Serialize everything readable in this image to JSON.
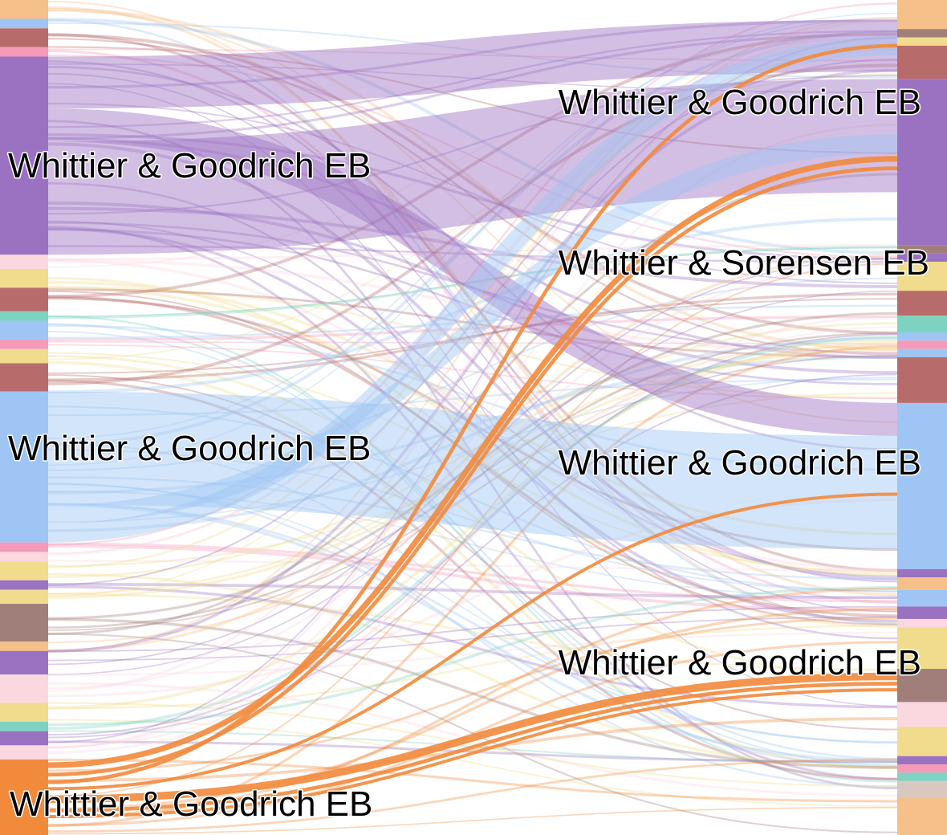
{
  "chart_data": {
    "type": "sankey",
    "title": "",
    "node_labels": {
      "left": [
        {
          "label": "Whittier & Goodrich EB",
          "color": "#9b72c2"
        },
        {
          "label": "Whittier & Goodrich EB",
          "color": "#9ec5f4"
        },
        {
          "label": "Whittier & Goodrich EB",
          "color": "#f28a3c"
        }
      ],
      "right": [
        {
          "label": "Whittier & Goodrich EB",
          "color": "#9b72c2"
        },
        {
          "label": "Whittier & Sorensen EB",
          "color": "#f0dc8c"
        },
        {
          "label": "Whittier & Goodrich EB",
          "color": "#9ec5f4"
        },
        {
          "label": "Whittier & Goodrich EB",
          "color": "#a07e7a"
        }
      ]
    },
    "palette": [
      "#9b72c2",
      "#9ec5f4",
      "#f28a3c",
      "#b86b6b",
      "#f0dc8c",
      "#7dd3c0",
      "#f59ab8",
      "#a07e7a",
      "#f5c08a",
      "#fbd7e0"
    ],
    "left_column": [
      {
        "color": "#f5c08a",
        "value": 2
      },
      {
        "color": "#9ec5f4",
        "value": 1
      },
      {
        "color": "#b86b6b",
        "value": 2
      },
      {
        "color": "#f59ab8",
        "value": 1
      },
      {
        "color": "#9b72c2",
        "value": 21
      },
      {
        "color": "#fbd7e0",
        "value": 1.5
      },
      {
        "color": "#f0dc8c",
        "value": 2
      },
      {
        "color": "#b86b6b",
        "value": 2.5
      },
      {
        "color": "#7dd3c0",
        "value": 1
      },
      {
        "color": "#9ec5f4",
        "value": 2
      },
      {
        "color": "#f59ab8",
        "value": 1
      },
      {
        "color": "#f0dc8c",
        "value": 1.5
      },
      {
        "color": "#b86b6b",
        "value": 3
      },
      {
        "color": "#9ec5f4",
        "value": 16
      },
      {
        "color": "#f59ab8",
        "value": 1
      },
      {
        "color": "#fbd7e0",
        "value": 1
      },
      {
        "color": "#f0dc8c",
        "value": 2
      },
      {
        "color": "#9b72c2",
        "value": 1
      },
      {
        "color": "#f0dc8c",
        "value": 1.5
      },
      {
        "color": "#a07e7a",
        "value": 4
      },
      {
        "color": "#f5c08a",
        "value": 1
      },
      {
        "color": "#9b72c2",
        "value": 2.5
      },
      {
        "color": "#fbd7e0",
        "value": 3
      },
      {
        "color": "#f0dc8c",
        "value": 2
      },
      {
        "color": "#7dd3c0",
        "value": 1
      },
      {
        "color": "#9b72c2",
        "value": 1.5
      },
      {
        "color": "#fbd7e0",
        "value": 1.5
      },
      {
        "color": "#f28a3c",
        "value": 8
      }
    ],
    "right_column": [
      {
        "color": "#f5c08a",
        "value": 3.5
      },
      {
        "color": "#a07e7a",
        "value": 1
      },
      {
        "color": "#f0dc8c",
        "value": 1
      },
      {
        "color": "#b86b6b",
        "value": 4
      },
      {
        "color": "#9b72c2",
        "value": 20
      },
      {
        "color": "#a07e7a",
        "value": 1
      },
      {
        "color": "#9b72c2",
        "value": 1
      },
      {
        "color": "#f0dc8c",
        "value": 3.5
      },
      {
        "color": "#b86b6b",
        "value": 3
      },
      {
        "color": "#7dd3c0",
        "value": 2
      },
      {
        "color": "#9ec5f4",
        "value": 1
      },
      {
        "color": "#f59ab8",
        "value": 1
      },
      {
        "color": "#9ec5f4",
        "value": 1
      },
      {
        "color": "#b86b6b",
        "value": 5.5
      },
      {
        "color": "#9ec5f4",
        "value": 20
      },
      {
        "color": "#9b72c2",
        "value": 1
      },
      {
        "color": "#f5c08a",
        "value": 1.5
      },
      {
        "color": "#9ec5f4",
        "value": 2
      },
      {
        "color": "#9b72c2",
        "value": 1.5
      },
      {
        "color": "#fbd7e0",
        "value": 1
      },
      {
        "color": "#f0dc8c",
        "value": 5
      },
      {
        "color": "#a07e7a",
        "value": 4
      },
      {
        "color": "#fbd7e0",
        "value": 3
      },
      {
        "color": "#f0dc8c",
        "value": 3.5
      },
      {
        "color": "#9b72c2",
        "value": 1
      },
      {
        "color": "#f59ab8",
        "value": 1
      },
      {
        "color": "#7dd3c0",
        "value": 1
      },
      {
        "color": "#d8c8c0",
        "value": 2
      },
      {
        "color": "#f5c08a",
        "value": 4.5
      }
    ],
    "flows": [
      {
        "source": 0,
        "target": 1,
        "value": 5.5,
        "color": "#9b72c2"
      },
      {
        "source": 0,
        "target": 2,
        "value": 3.5,
        "color": "#9b72c2"
      },
      {
        "source": 0,
        "target": 0,
        "value": 12,
        "color": "#9b72c2"
      },
      {
        "source": 1,
        "target": 2,
        "value": 12,
        "color": "#9ec5f4"
      },
      {
        "source": 1,
        "target": 0,
        "value": 2,
        "color": "#9ec5f4"
      },
      {
        "source": 1,
        "target": 1,
        "value": 2,
        "color": "#9ec5f4"
      },
      {
        "source": 2,
        "target": 0,
        "value": 1.2,
        "color": "#f28a3c"
      },
      {
        "source": 2,
        "target": 0,
        "value": 0.8,
        "color": "#f28a3c"
      },
      {
        "source": 2,
        "target": 1,
        "value": 0.8,
        "color": "#f28a3c"
      },
      {
        "source": 2,
        "target": 2,
        "value": 0.6,
        "color": "#f28a3c"
      },
      {
        "source": 2,
        "target": 3,
        "value": 1.6,
        "color": "#f28a3c"
      },
      {
        "source": 2,
        "target": 3,
        "value": 0.8,
        "color": "#f28a3c"
      },
      {
        "source": 2,
        "target": 3,
        "value": 0.5,
        "color": "#f28a3c"
      }
    ]
  }
}
